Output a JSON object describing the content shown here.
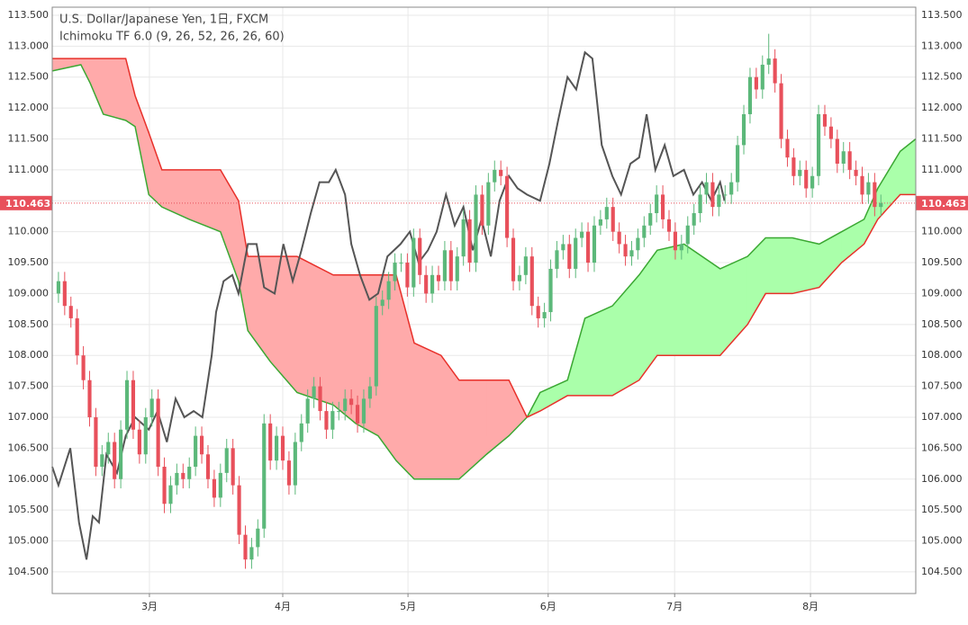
{
  "chart_data": {
    "type": "candlestick",
    "title": "U.S. Dollar/Japanese Yen, 1日, FXCM",
    "subtitle": "Ichimoku TF 6.0 (9, 26, 52, 26, 26, 60)",
    "xlim": [
      -1,
      137.6
    ],
    "ylim": [
      104.15,
      113.63
    ],
    "xticks": [
      {
        "value": 14.6,
        "label": "3月"
      },
      {
        "value": 36.0,
        "label": "4月"
      },
      {
        "value": 56.1,
        "label": "5月"
      },
      {
        "value": 78.6,
        "label": "6月"
      },
      {
        "value": 98.9,
        "label": "7月"
      },
      {
        "value": 120.7,
        "label": "8月"
      }
    ],
    "yticks": [
      {
        "value": 104.5,
        "label": "104.500"
      },
      {
        "value": 105,
        "label": "105.000"
      },
      {
        "value": 105.5,
        "label": "105.500"
      },
      {
        "value": 106,
        "label": "106.000"
      },
      {
        "value": 106.5,
        "label": "106.500"
      },
      {
        "value": 107,
        "label": "107.000"
      },
      {
        "value": 107.5,
        "label": "107.500"
      },
      {
        "value": 108,
        "label": "108.000"
      },
      {
        "value": 108.5,
        "label": "108.500"
      },
      {
        "value": 109,
        "label": "109.000"
      },
      {
        "value": 109.5,
        "label": "109.500"
      },
      {
        "value": 110,
        "label": "110.000"
      },
      {
        "value": 110.5,
        "label": "110.500"
      },
      {
        "value": 111,
        "label": "111.000"
      },
      {
        "value": 111.5,
        "label": "111.500"
      },
      {
        "value": 112,
        "label": "112.000"
      },
      {
        "value": 112.5,
        "label": "112.500"
      },
      {
        "value": 113,
        "label": "113.000"
      },
      {
        "value": 113.5,
        "label": "113.500"
      }
    ],
    "grid": true,
    "up_color": "#5cb87a",
    "down_color": "#e8505b",
    "last_price": 110.463,
    "last_price_color": "#e8505b",
    "x": [
      0,
      1,
      2,
      3,
      4,
      5,
      6,
      7,
      8,
      9,
      10,
      11,
      12,
      13,
      14,
      15,
      16,
      17,
      18,
      19,
      20,
      21,
      22,
      23,
      24,
      25,
      26,
      27,
      28,
      29,
      30,
      31,
      32,
      33,
      34,
      35,
      36,
      37,
      38,
      39,
      40,
      41,
      42,
      43,
      44,
      45,
      46,
      47,
      48,
      49,
      50,
      51,
      52,
      53,
      54,
      55,
      56,
      57,
      58,
      59,
      60,
      61,
      62,
      63,
      64,
      65,
      66,
      67,
      68,
      69,
      70,
      71,
      72,
      73,
      74,
      75,
      76,
      77,
      78,
      79,
      80,
      81,
      82,
      83,
      84,
      85,
      86,
      87,
      88,
      89,
      90,
      91,
      92,
      93,
      94,
      95,
      96,
      97,
      98,
      99,
      100,
      101,
      102,
      103,
      104,
      105,
      106,
      107,
      108,
      109,
      110,
      111,
      112,
      113,
      114,
      115,
      116,
      117,
      118,
      119,
      120,
      121,
      122,
      123,
      124,
      125,
      126,
      127,
      128,
      129,
      130,
      131,
      132
    ],
    "candles": [
      [
        109.0,
        109.35,
        108.85,
        109.2
      ],
      [
        109.2,
        109.35,
        108.65,
        108.8
      ],
      [
        108.8,
        108.95,
        108.45,
        108.6
      ],
      [
        108.6,
        108.75,
        107.85,
        108.0
      ],
      [
        108.0,
        108.15,
        107.45,
        107.6
      ],
      [
        107.6,
        107.75,
        106.85,
        107.0
      ],
      [
        107.0,
        107.15,
        106.05,
        106.2
      ],
      [
        106.2,
        106.55,
        106.05,
        106.4
      ],
      [
        106.4,
        106.75,
        106.25,
        106.6
      ],
      [
        106.6,
        106.75,
        105.85,
        106.0
      ],
      [
        106.0,
        106.95,
        105.85,
        106.8
      ],
      [
        106.8,
        107.75,
        106.65,
        107.6
      ],
      [
        107.6,
        107.75,
        106.65,
        106.8
      ],
      [
        106.8,
        106.95,
        106.25,
        106.4
      ],
      [
        106.4,
        107.15,
        106.25,
        107.0
      ],
      [
        107.0,
        107.45,
        106.85,
        107.3
      ],
      [
        107.3,
        107.45,
        106.05,
        106.2
      ],
      [
        106.2,
        106.35,
        105.45,
        105.6
      ],
      [
        105.6,
        106.05,
        105.45,
        105.9
      ],
      [
        105.9,
        106.25,
        105.75,
        106.1
      ],
      [
        106.1,
        106.25,
        105.85,
        106.0
      ],
      [
        106.0,
        106.35,
        105.85,
        106.2
      ],
      [
        106.2,
        106.85,
        106.05,
        106.7
      ],
      [
        106.7,
        106.85,
        106.25,
        106.4
      ],
      [
        106.4,
        106.55,
        105.85,
        106.0
      ],
      [
        106.0,
        106.15,
        105.55,
        105.7
      ],
      [
        105.7,
        106.25,
        105.55,
        106.1
      ],
      [
        106.1,
        106.65,
        105.95,
        106.5
      ],
      [
        106.5,
        106.65,
        105.75,
        105.9
      ],
      [
        105.9,
        106.05,
        104.95,
        105.1
      ],
      [
        105.1,
        105.25,
        104.55,
        104.7
      ],
      [
        104.7,
        105.05,
        104.55,
        104.9
      ],
      [
        104.9,
        105.35,
        104.75,
        105.2
      ],
      [
        105.2,
        107.05,
        105.05,
        106.9
      ],
      [
        106.9,
        107.05,
        106.15,
        106.3
      ],
      [
        106.3,
        106.85,
        106.15,
        106.7
      ],
      [
        106.7,
        106.85,
        106.15,
        106.3
      ],
      [
        106.3,
        106.45,
        105.75,
        105.9
      ],
      [
        105.9,
        106.75,
        105.75,
        106.6
      ],
      [
        106.6,
        107.05,
        106.45,
        106.9
      ],
      [
        106.9,
        107.45,
        106.75,
        107.3
      ],
      [
        107.3,
        107.65,
        107.15,
        107.5
      ],
      [
        107.5,
        107.65,
        106.95,
        107.1
      ],
      [
        107.1,
        107.25,
        106.65,
        106.8
      ],
      [
        106.8,
        107.25,
        106.65,
        107.1
      ],
      [
        107.1,
        107.25,
        106.95,
        107.1
      ],
      [
        107.1,
        107.45,
        106.95,
        107.3
      ],
      [
        107.3,
        107.45,
        107.05,
        107.2
      ],
      [
        107.2,
        107.35,
        106.75,
        106.9
      ],
      [
        106.9,
        107.45,
        106.75,
        107.3
      ],
      [
        107.3,
        107.65,
        107.15,
        107.5
      ],
      [
        107.5,
        108.95,
        107.35,
        108.8
      ],
      [
        108.8,
        109.05,
        108.65,
        108.9
      ],
      [
        108.9,
        109.35,
        108.75,
        109.2
      ],
      [
        109.2,
        109.65,
        109.05,
        109.5
      ],
      [
        109.5,
        109.65,
        109.35,
        109.5
      ],
      [
        109.5,
        109.65,
        108.95,
        109.1
      ],
      [
        109.1,
        110.05,
        108.95,
        109.9
      ],
      [
        109.9,
        110.05,
        109.15,
        109.3
      ],
      [
        109.3,
        109.45,
        108.85,
        109.0
      ],
      [
        109.0,
        109.45,
        108.85,
        109.3
      ],
      [
        109.3,
        109.45,
        109.05,
        109.2
      ],
      [
        109.2,
        109.85,
        109.05,
        109.7
      ],
      [
        109.7,
        109.85,
        109.05,
        109.2
      ],
      [
        109.2,
        109.75,
        109.05,
        109.6
      ],
      [
        109.6,
        110.35,
        109.45,
        110.2
      ],
      [
        110.2,
        110.35,
        109.35,
        109.5
      ],
      [
        109.5,
        110.75,
        109.35,
        110.6
      ],
      [
        110.6,
        110.75,
        109.95,
        110.1
      ],
      [
        110.1,
        110.95,
        109.95,
        110.8
      ],
      [
        110.8,
        111.15,
        110.65,
        111.0
      ],
      [
        111.0,
        111.15,
        110.75,
        110.9
      ],
      [
        110.9,
        111.05,
        109.75,
        109.9
      ],
      [
        109.9,
        110.05,
        109.05,
        109.2
      ],
      [
        109.2,
        109.45,
        109.05,
        109.3
      ],
      [
        109.3,
        109.75,
        109.15,
        109.6
      ],
      [
        109.6,
        109.75,
        108.65,
        108.8
      ],
      [
        108.8,
        108.95,
        108.45,
        108.6
      ],
      [
        108.6,
        108.85,
        108.45,
        108.7
      ],
      [
        108.7,
        109.55,
        108.55,
        109.4
      ],
      [
        109.4,
        109.85,
        109.25,
        109.7
      ],
      [
        109.7,
        109.95,
        109.55,
        109.8
      ],
      [
        109.8,
        109.95,
        109.25,
        109.4
      ],
      [
        109.4,
        110.05,
        109.25,
        109.9
      ],
      [
        109.9,
        110.15,
        109.75,
        110.0
      ],
      [
        110.0,
        110.15,
        109.35,
        109.5
      ],
      [
        109.5,
        110.25,
        109.35,
        110.1
      ],
      [
        110.1,
        110.35,
        109.95,
        110.2
      ],
      [
        110.2,
        110.55,
        110.05,
        110.4
      ],
      [
        110.4,
        110.55,
        109.85,
        110.0
      ],
      [
        110.0,
        110.15,
        109.65,
        109.8
      ],
      [
        109.8,
        109.95,
        109.45,
        109.6
      ],
      [
        109.6,
        109.85,
        109.45,
        109.7
      ],
      [
        109.7,
        110.05,
        109.55,
        109.9
      ],
      [
        109.9,
        110.25,
        109.75,
        110.1
      ],
      [
        110.1,
        110.45,
        109.95,
        110.3
      ],
      [
        110.3,
        110.75,
        110.15,
        110.6
      ],
      [
        110.6,
        110.75,
        110.05,
        110.2
      ],
      [
        110.2,
        110.35,
        109.85,
        110.0
      ],
      [
        110.0,
        110.15,
        109.55,
        109.7
      ],
      [
        109.7,
        109.95,
        109.55,
        109.8
      ],
      [
        109.8,
        110.25,
        109.65,
        110.1
      ],
      [
        110.1,
        110.45,
        109.95,
        110.3
      ],
      [
        110.3,
        110.75,
        110.15,
        110.6
      ],
      [
        110.6,
        110.95,
        110.45,
        110.8
      ],
      [
        110.8,
        110.95,
        110.25,
        110.4
      ],
      [
        110.4,
        110.75,
        110.25,
        110.6
      ],
      [
        110.6,
        110.75,
        110.45,
        110.6
      ],
      [
        110.6,
        110.95,
        110.45,
        110.8
      ],
      [
        110.8,
        111.55,
        110.65,
        111.4
      ],
      [
        111.4,
        112.05,
        111.25,
        111.9
      ],
      [
        111.9,
        112.65,
        111.75,
        112.5
      ],
      [
        112.5,
        112.65,
        112.15,
        112.3
      ],
      [
        112.3,
        112.85,
        112.15,
        112.7
      ],
      [
        112.7,
        113.2,
        112.55,
        112.8
      ],
      [
        112.8,
        112.95,
        112.25,
        112.4
      ],
      [
        112.4,
        112.55,
        111.35,
        111.5
      ],
      [
        111.5,
        111.65,
        111.05,
        111.2
      ],
      [
        111.2,
        111.35,
        110.75,
        110.9
      ],
      [
        110.9,
        111.15,
        110.75,
        111.0
      ],
      [
        111.0,
        111.15,
        110.55,
        110.7
      ],
      [
        110.7,
        111.05,
        110.55,
        110.9
      ],
      [
        110.9,
        112.05,
        110.75,
        111.9
      ],
      [
        111.9,
        112.05,
        111.55,
        111.7
      ],
      [
        111.7,
        111.85,
        111.35,
        111.5
      ],
      [
        111.5,
        111.65,
        110.95,
        111.1
      ],
      [
        111.1,
        111.45,
        110.95,
        111.3
      ],
      [
        111.3,
        111.45,
        110.85,
        111.0
      ],
      [
        111.0,
        111.15,
        110.75,
        110.9
      ],
      [
        110.9,
        111.05,
        110.45,
        110.6
      ],
      [
        110.6,
        110.95,
        110.45,
        110.8
      ],
      [
        110.8,
        110.95,
        110.25,
        110.4
      ],
      [
        110.4,
        110.6,
        110.25,
        110.463
      ]
    ],
    "cloud": {
      "x": [
        -1.0,
        3.6,
        5.1,
        7.2,
        10.8,
        12.3,
        14.5,
        16.6,
        21.0,
        26.0,
        28.9,
        30.4,
        34.0,
        38.3,
        44.1,
        47.7,
        51.3,
        54.2,
        57.1,
        61.4,
        64.3,
        68.7,
        72.3,
        75.2,
        77.3,
        81.7,
        84.5,
        88.9,
        93.2,
        96.1,
        100.4,
        106.2,
        110.6,
        113.5,
        117.8,
        122.1,
        125.7,
        129.3,
        131.5,
        135.1,
        137.6
      ],
      "span_a": [
        112.6,
        112.7,
        112.4,
        111.9,
        111.8,
        111.7,
        110.6,
        110.4,
        110.2,
        110.0,
        109.2,
        108.4,
        107.9,
        107.4,
        107.2,
        106.9,
        106.7,
        106.3,
        106.0,
        106.0,
        106.0,
        106.4,
        106.7,
        107.0,
        107.4,
        107.6,
        108.6,
        108.8,
        109.3,
        109.7,
        109.8,
        109.4,
        109.6,
        109.9,
        109.9,
        109.8,
        110.0,
        110.2,
        110.7,
        111.3,
        111.5
      ],
      "span_b": [
        112.8,
        112.8,
        112.8,
        112.8,
        112.8,
        112.2,
        111.6,
        111.0,
        111.0,
        111.0,
        110.5,
        109.6,
        109.6,
        109.6,
        109.3,
        109.3,
        109.3,
        109.3,
        108.2,
        108.0,
        107.6,
        107.6,
        107.6,
        107.0,
        107.1,
        107.35,
        107.35,
        107.35,
        107.6,
        108.0,
        108.0,
        108.0,
        108.5,
        109.0,
        109.0,
        109.1,
        109.5,
        109.8,
        110.2,
        110.6,
        110.6
      ],
      "bull_fill": "#aaffaa",
      "bear_fill": "#ffaaaa",
      "a_color": "#3aa832",
      "b_color": "#e8302a"
    },
    "chikou": {
      "color": "#555555",
      "x": [
        -1.0,
        0.0,
        1.9,
        3.3,
        4.5,
        5.5,
        6.5,
        7.7,
        9.4,
        10.8,
        12.3,
        14.5,
        15.9,
        17.4,
        18.8,
        20.2,
        21.7,
        23.1,
        24.6,
        25.3,
        26.5,
        27.9,
        28.9,
        30.4,
        31.8,
        33.0,
        34.7,
        36.1,
        37.6,
        39.0,
        40.5,
        41.9,
        43.4,
        44.5,
        46.0,
        47.0,
        48.4,
        49.9,
        51.3,
        52.8,
        54.9,
        56.4,
        57.8,
        59.3,
        60.7,
        62.2,
        63.6,
        65.0,
        66.5,
        67.9,
        69.4,
        70.8,
        72.3,
        73.7,
        75.2,
        77.3,
        78.8,
        80.2,
        81.7,
        83.1,
        84.5,
        85.7,
        87.2,
        88.9,
        90.3,
        91.8,
        93.2,
        94.4,
        95.8,
        97.3,
        98.7,
        100.4,
        101.9,
        103.3,
        104.8,
        106.2,
        106.9
      ],
      "values": [
        106.2,
        105.9,
        106.5,
        105.3,
        104.7,
        105.4,
        105.3,
        106.4,
        106.1,
        106.7,
        107.0,
        106.8,
        107.1,
        106.6,
        107.3,
        107.0,
        107.1,
        107.0,
        108.0,
        108.7,
        109.2,
        109.3,
        109.0,
        109.8,
        109.8,
        109.1,
        109.0,
        109.8,
        109.2,
        109.7,
        110.3,
        110.8,
        110.8,
        111.0,
        110.6,
        109.8,
        109.3,
        108.9,
        109.0,
        109.6,
        109.8,
        110.0,
        109.5,
        109.7,
        110.0,
        110.6,
        110.1,
        110.4,
        109.7,
        110.2,
        109.6,
        110.5,
        110.9,
        110.7,
        110.6,
        110.5,
        111.1,
        111.8,
        112.5,
        112.3,
        112.9,
        112.8,
        111.4,
        110.9,
        110.6,
        111.1,
        111.2,
        111.9,
        111.0,
        111.4,
        110.9,
        111.0,
        110.6,
        110.8,
        110.5,
        110.8,
        110.5
      ]
    }
  }
}
